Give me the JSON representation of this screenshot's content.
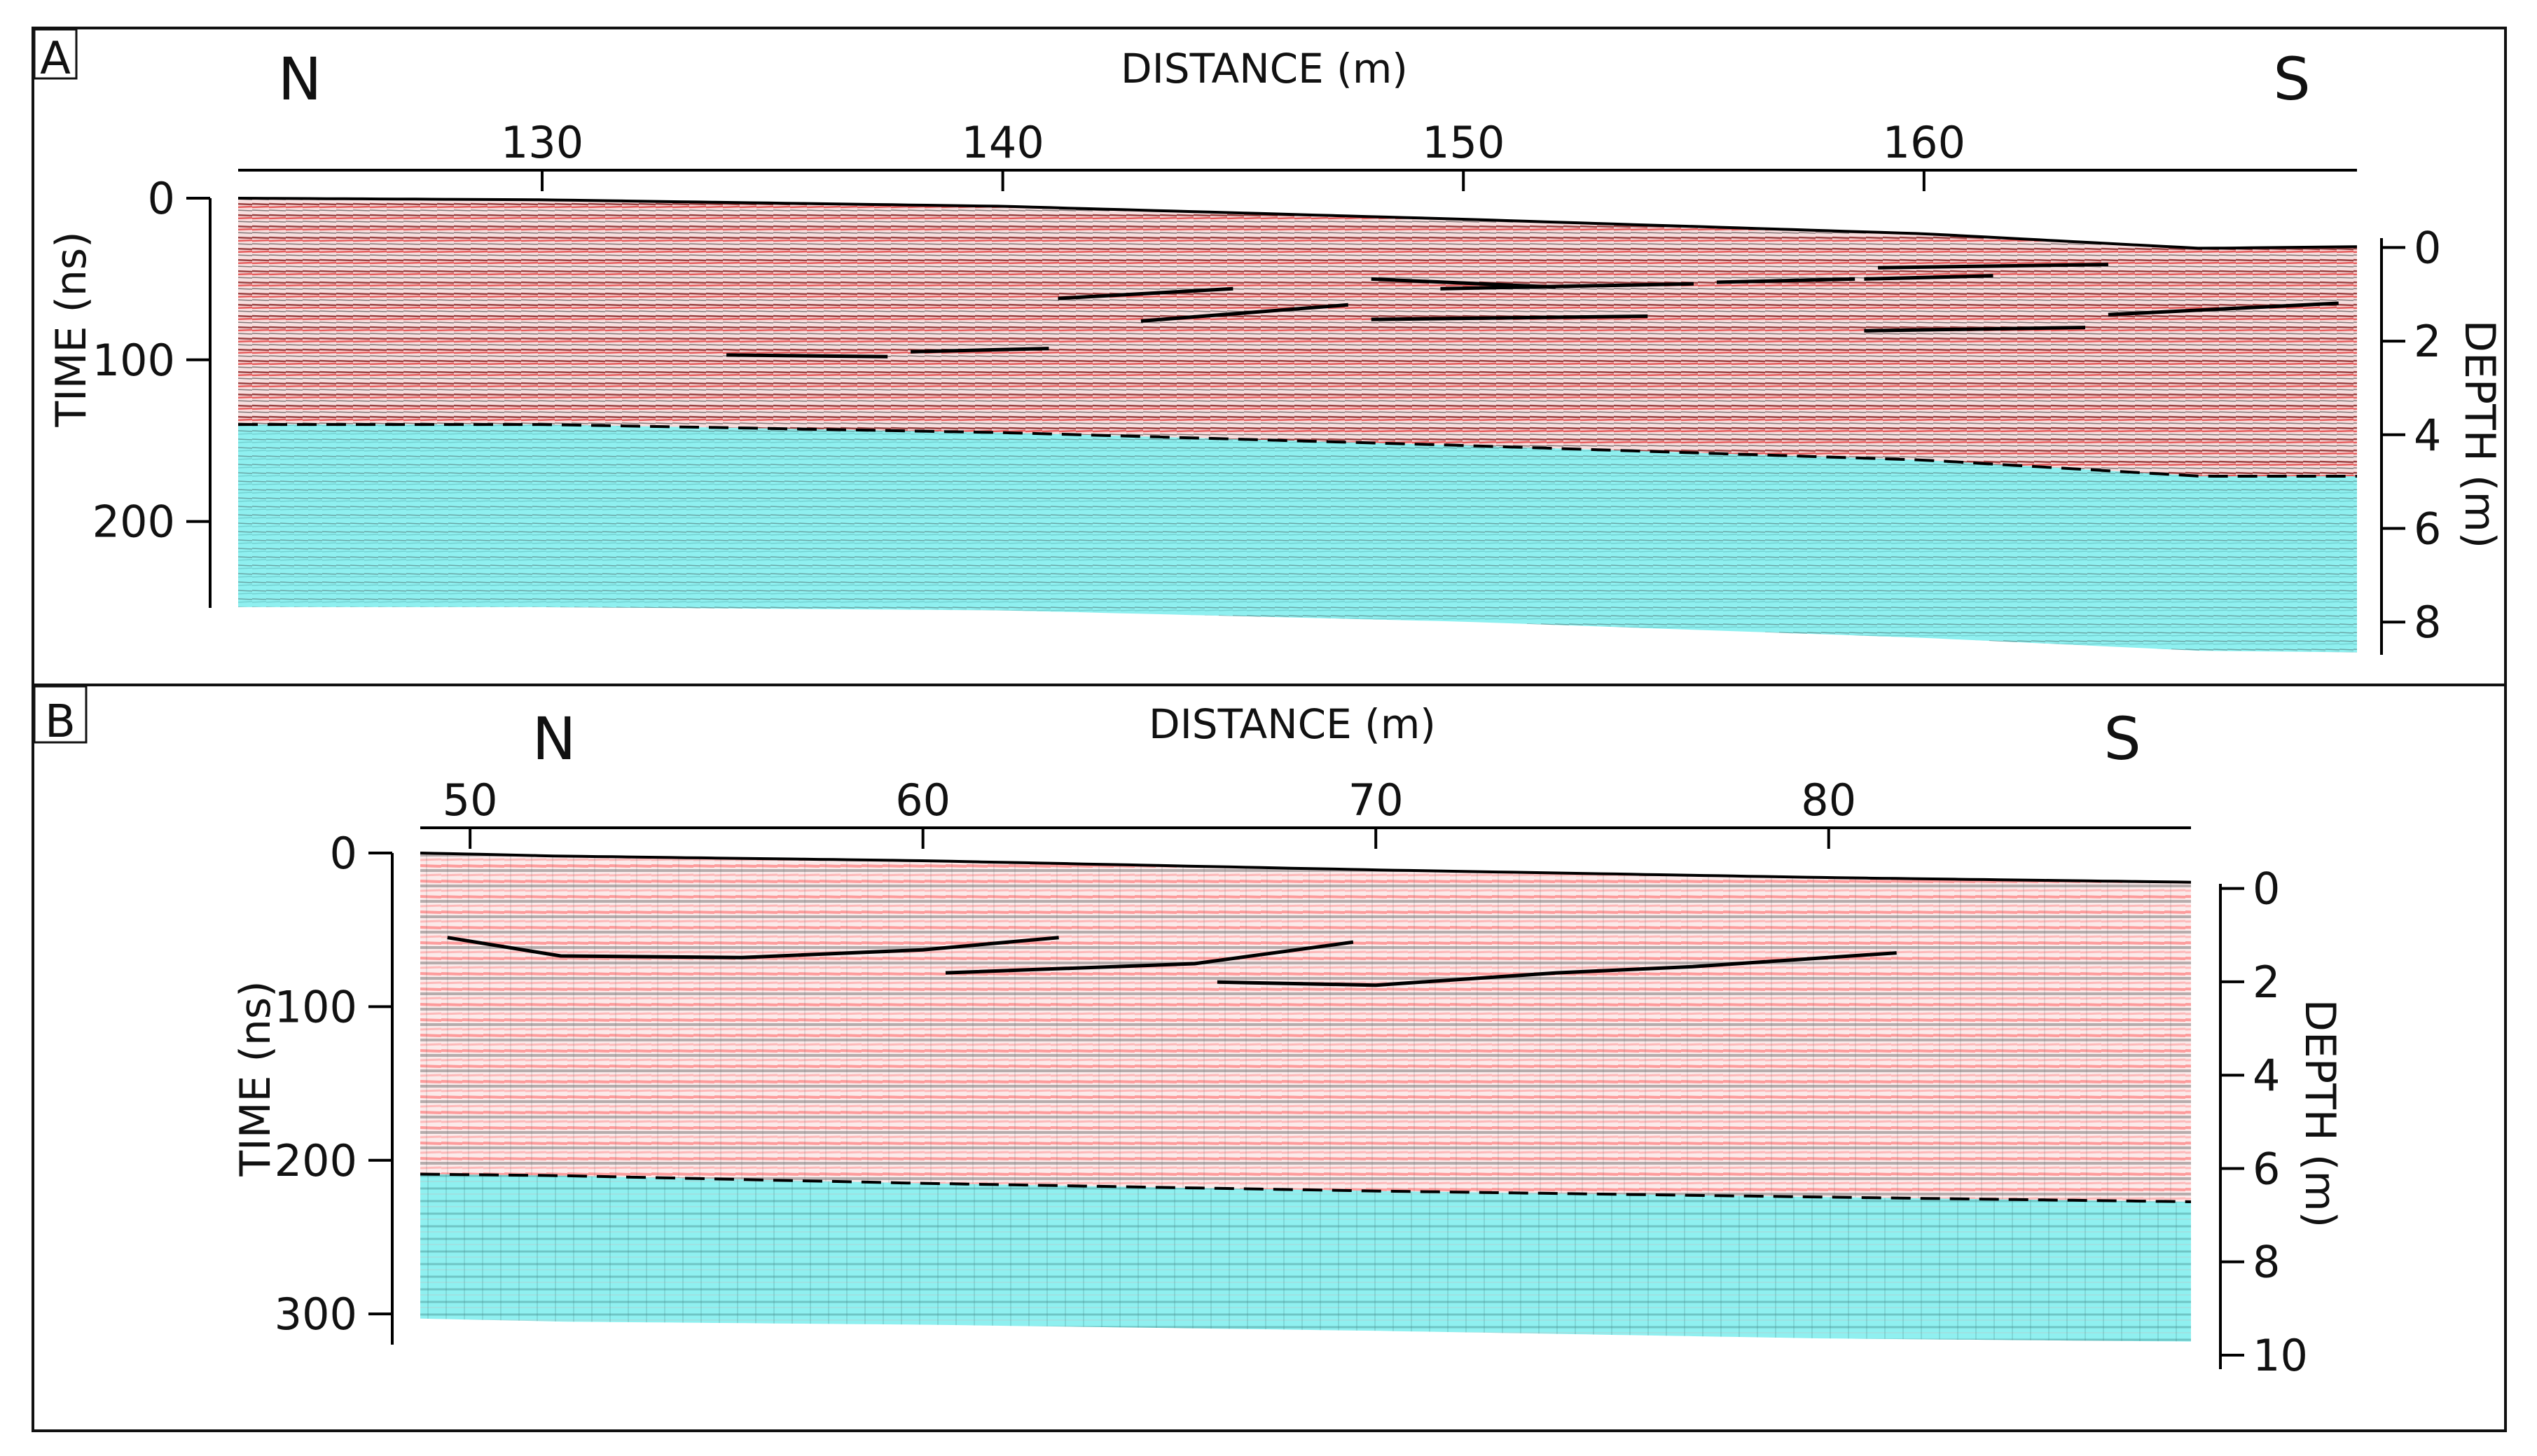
{
  "chart_data": [
    {
      "panel_label": "A",
      "type": "line",
      "xlabel": "DISTANCE (m)",
      "ylabel_left": "TIME (ns)",
      "ylabel_right": "DEPTH (m)",
      "direction_left": "N",
      "direction_right": "S",
      "x_ticks": [
        130,
        140,
        150,
        160
      ],
      "time_ticks": [
        0,
        100,
        200
      ],
      "depth_ticks": [
        0,
        2,
        4,
        6,
        8
      ],
      "xlim": [
        123.4,
        169.4
      ],
      "time_range": [
        0,
        250
      ],
      "depth_range": [
        -0.2,
        8.7
      ],
      "colors": {
        "background": "#ffffff",
        "top_radar": "#b03030",
        "bottom_shading": "#8ff0f0",
        "interpretation_lines": "#000000"
      },
      "series": [
        {
          "x": [
            123.4,
            130,
            140,
            150,
            160,
            166,
            169.4
          ],
          "y": [
            0,
            1,
            5,
            13,
            22,
            31,
            30
          ]
        },
        {
          "x": [
            123.4,
            130,
            140,
            150,
            160,
            166,
            169.4
          ],
          "y": [
            140,
            140,
            145,
            153,
            162,
            172,
            172
          ]
        },
        {
          "x": [
            123.4,
            130,
            140,
            150,
            160,
            166,
            169.4
          ],
          "y": [
            253,
            253,
            255,
            262,
            272,
            280,
            281
          ]
        },
        {
          "x": [
            134.0,
            137.5
          ],
          "y": [
            97,
            98
          ]
        },
        {
          "x": [
            138.0,
            141.0
          ],
          "y": [
            95,
            93
          ]
        },
        {
          "x": [
            141.2,
            145.0
          ],
          "y": [
            62,
            56
          ]
        },
        {
          "x": [
            143.0,
            147.5
          ],
          "y": [
            76,
            66
          ]
        },
        {
          "x": [
            148.0,
            152.0
          ],
          "y": [
            50,
            55
          ]
        },
        {
          "x": [
            149.5,
            155.0
          ],
          "y": [
            56,
            53
          ]
        },
        {
          "x": [
            148.0,
            154.0
          ],
          "y": [
            75,
            73
          ]
        },
        {
          "x": [
            155.5,
            158.5
          ],
          "y": [
            52,
            50
          ]
        },
        {
          "x": [
            158.7,
            161.5
          ],
          "y": [
            50,
            48
          ]
        },
        {
          "x": [
            159.0,
            164.0
          ],
          "y": [
            43,
            41
          ]
        },
        {
          "x": [
            158.7,
            163.5
          ],
          "y": [
            82,
            80
          ]
        },
        {
          "x": [
            164.0,
            169.0
          ],
          "y": [
            72,
            65
          ]
        }
      ]
    },
    {
      "panel_label": "B",
      "type": "line",
      "xlabel": "DISTANCE (m)",
      "ylabel_left": "TIME (ns)",
      "ylabel_right": "DEPTH (m)",
      "direction_left": "N",
      "direction_right": "S",
      "x_ticks": [
        50,
        60,
        70,
        80
      ],
      "time_ticks": [
        0,
        100,
        200,
        300
      ],
      "depth_ticks": [
        0,
        2,
        4,
        6,
        8,
        10
      ],
      "xlim": [
        48.9,
        88.0
      ],
      "time_range": [
        0,
        320
      ],
      "depth_range": [
        -0.1,
        10.3
      ],
      "colors": {
        "background": "#ffffff",
        "top_radar": "#e87070",
        "bottom_shading": "#8ff0f0",
        "interpretation_lines": "#000000"
      },
      "series": [
        {
          "x": [
            48.9,
            52,
            60,
            70,
            80,
            88.0
          ],
          "y": [
            0,
            2,
            5,
            11,
            16,
            19
          ]
        },
        {
          "x": [
            48.9,
            52,
            60,
            70,
            80,
            88.0
          ],
          "y": [
            209,
            210,
            215,
            220,
            224,
            227
          ]
        },
        {
          "x": [
            48.9,
            52,
            60,
            70,
            80,
            88.0
          ],
          "y": [
            303,
            305,
            307,
            311,
            316,
            318
          ]
        },
        {
          "x": [
            49.5,
            52.0,
            56.0,
            60.0,
            63.0
          ],
          "y": [
            55,
            67,
            68,
            63,
            55
          ]
        },
        {
          "x": [
            60.5,
            66.0,
            69.5
          ],
          "y": [
            78,
            72,
            58
          ]
        },
        {
          "x": [
            66.5,
            70.0,
            74.0,
            77.0,
            81.5
          ],
          "y": [
            84,
            86,
            78,
            74,
            65
          ]
        }
      ]
    }
  ]
}
